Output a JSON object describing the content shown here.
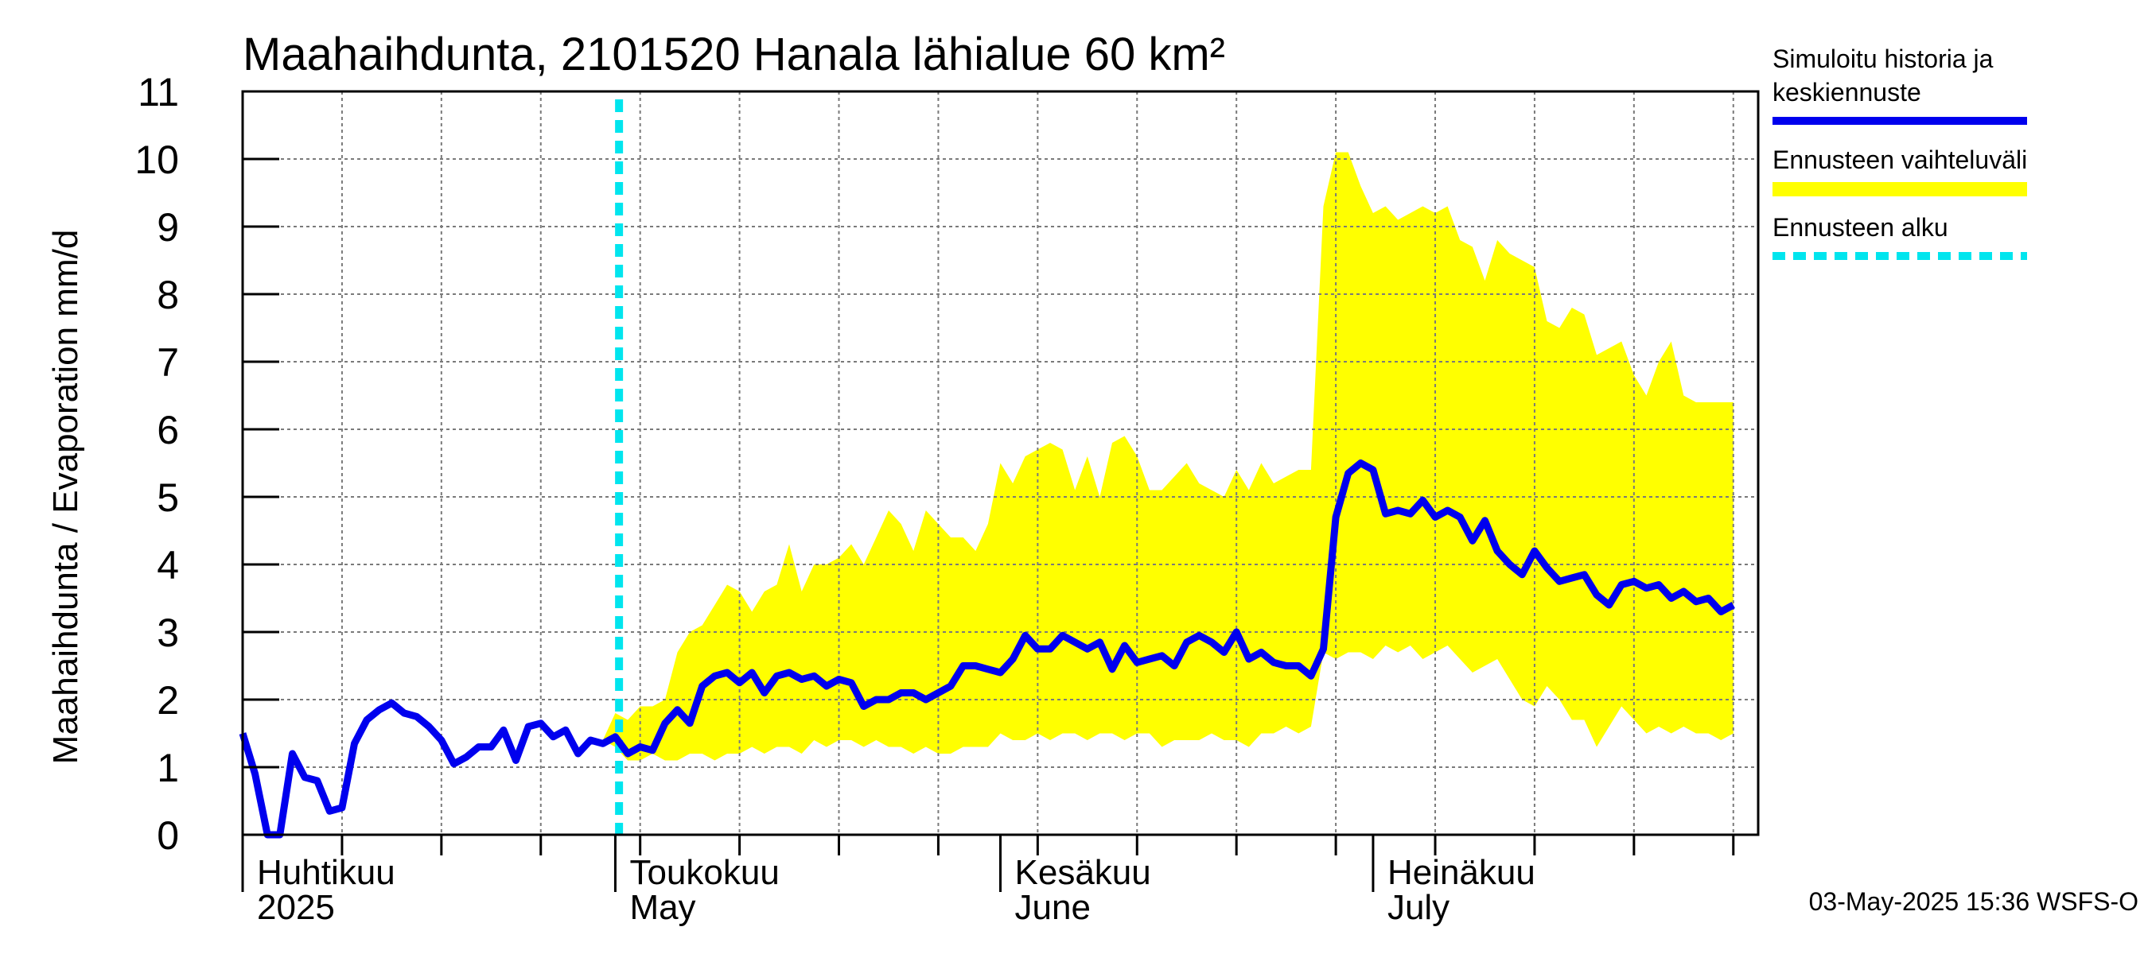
{
  "chart_data": {
    "type": "line",
    "title": "Maahaihdunta, 2101520 Hanala lähialue 60 km²",
    "ylabel": "Maahaihdunta / Evaporation   mm/d",
    "ylim": [
      0,
      11
    ],
    "yticks": [
      0,
      1,
      2,
      3,
      4,
      5,
      6,
      7,
      8,
      9,
      10,
      11
    ],
    "x_range": [
      "2025-04-01",
      "2025-07-31"
    ],
    "month_labels": [
      {
        "fi": "Huhtikuu",
        "en": "2025",
        "day": 0
      },
      {
        "fi": "Toukokuu",
        "en": "May",
        "day": 30
      },
      {
        "fi": "Kesäkuu",
        "en": "June",
        "day": 61
      },
      {
        "fi": "Heinäkuu",
        "en": "July",
        "day": 91
      }
    ],
    "forecast_start_day": 30.3,
    "legend": [
      {
        "label": "Simuloitu historia ja keskiennuste",
        "color": "#0000ee",
        "style": "solid"
      },
      {
        "label": "Ennusteen vaihteluväli",
        "color": "#ffff00",
        "style": "band"
      },
      {
        "label": "Ennusteen alku",
        "color": "#00e5ee",
        "style": "dashed"
      }
    ],
    "series": [
      {
        "name": "Simuloitu historia ja keskiennuste",
        "x": [
          0,
          1,
          2,
          3,
          4,
          5,
          6,
          7,
          8,
          9,
          10,
          11,
          12,
          13,
          14,
          15,
          16,
          17,
          18,
          19,
          20,
          21,
          22,
          23,
          24,
          25,
          26,
          27,
          28,
          29,
          30,
          31,
          32,
          33,
          34,
          35,
          36,
          37,
          38,
          39,
          40,
          41,
          42,
          43,
          44,
          45,
          46,
          47,
          48,
          49,
          50,
          51,
          52,
          53,
          54,
          55,
          56,
          57,
          58,
          59,
          60,
          61,
          62,
          63,
          64,
          65,
          66,
          67,
          68,
          69,
          70,
          71,
          72,
          73,
          74,
          75,
          76,
          77,
          78,
          79,
          80,
          81,
          82,
          83,
          84,
          85,
          86,
          87,
          88,
          89,
          90,
          91,
          92,
          93,
          94,
          95,
          96,
          97,
          98,
          99,
          100,
          101,
          102,
          103,
          104,
          105,
          106,
          107,
          108,
          109,
          110,
          111,
          112,
          113,
          114,
          115,
          116,
          117,
          118,
          119,
          120
        ],
        "values": [
          1.5,
          0.9,
          0.0,
          0.0,
          1.2,
          0.85,
          0.8,
          0.35,
          0.4,
          1.35,
          1.7,
          1.85,
          1.95,
          1.8,
          1.75,
          1.6,
          1.4,
          1.05,
          1.15,
          1.3,
          1.3,
          1.55,
          1.1,
          1.6,
          1.65,
          1.45,
          1.55,
          1.2,
          1.4,
          1.35,
          1.45,
          1.2,
          1.3,
          1.25,
          1.65,
          1.85,
          1.65,
          2.2,
          2.35,
          2.4,
          2.25,
          2.4,
          2.1,
          2.35,
          2.4,
          2.3,
          2.35,
          2.2,
          2.3,
          2.25,
          1.9,
          2.0,
          2.0,
          2.1,
          2.1,
          2.0,
          2.1,
          2.2,
          2.5,
          2.5,
          2.45,
          2.4,
          2.6,
          2.95,
          2.75,
          2.75,
          2.95,
          2.85,
          2.75,
          2.85,
          2.45,
          2.8,
          2.55,
          2.6,
          2.65,
          2.5,
          2.85,
          2.95,
          2.85,
          2.7,
          3.0,
          2.6,
          2.7,
          2.55,
          2.5,
          2.5,
          2.35,
          2.75,
          4.7,
          5.35,
          5.5,
          5.4,
          4.75,
          4.8,
          4.75,
          4.95,
          4.7,
          4.8,
          4.7,
          4.35,
          4.65,
          4.2,
          4.0,
          3.85,
          4.2,
          3.95,
          3.75,
          3.8,
          3.85,
          3.55,
          3.4,
          3.7,
          3.75,
          3.65,
          3.7,
          3.5,
          3.6,
          3.45,
          3.5,
          3.3,
          3.4
        ]
      },
      {
        "name": "Ennusteen vaihteluväli",
        "x": [
          29,
          30,
          31,
          32,
          33,
          34,
          35,
          36,
          37,
          38,
          39,
          40,
          41,
          42,
          43,
          44,
          45,
          46,
          47,
          48,
          49,
          50,
          51,
          52,
          53,
          54,
          55,
          56,
          57,
          58,
          59,
          60,
          61,
          62,
          63,
          64,
          65,
          66,
          67,
          68,
          69,
          70,
          71,
          72,
          73,
          74,
          75,
          76,
          77,
          78,
          79,
          80,
          81,
          82,
          83,
          84,
          85,
          86,
          87,
          88,
          89,
          90,
          91,
          92,
          93,
          94,
          95,
          96,
          97,
          98,
          99,
          100,
          101,
          102,
          103,
          104,
          105,
          106,
          107,
          108,
          109,
          110,
          111,
          112,
          113,
          114,
          115,
          116,
          117,
          118,
          119,
          120
        ],
        "upper": [
          1.4,
          1.8,
          1.7,
          1.9,
          1.9,
          2.0,
          2.7,
          3.0,
          3.1,
          3.4,
          3.7,
          3.6,
          3.3,
          3.6,
          3.7,
          4.3,
          3.6,
          4.0,
          4.0,
          4.1,
          4.3,
          4.0,
          4.4,
          4.8,
          4.6,
          4.2,
          4.8,
          4.6,
          4.4,
          4.4,
          4.2,
          4.6,
          5.5,
          5.2,
          5.6,
          5.7,
          5.8,
          5.7,
          5.1,
          5.6,
          5.0,
          5.8,
          5.9,
          5.6,
          5.1,
          5.1,
          5.3,
          5.5,
          5.2,
          5.1,
          5.0,
          5.4,
          5.1,
          5.5,
          5.2,
          5.3,
          5.4,
          5.4,
          9.3,
          10.1,
          10.1,
          9.6,
          9.2,
          9.3,
          9.1,
          9.2,
          9.3,
          9.2,
          9.3,
          8.8,
          8.7,
          8.2,
          8.8,
          8.6,
          8.5,
          8.4,
          7.6,
          7.5,
          7.8,
          7.7,
          7.1,
          7.2,
          7.3,
          6.8,
          6.5,
          7.0,
          7.3,
          6.5,
          6.4,
          6.4,
          6.4,
          6.4
        ],
        "lower": [
          1.4,
          1.3,
          1.1,
          1.1,
          1.2,
          1.1,
          1.1,
          1.2,
          1.2,
          1.1,
          1.2,
          1.2,
          1.3,
          1.2,
          1.3,
          1.3,
          1.2,
          1.4,
          1.3,
          1.4,
          1.4,
          1.3,
          1.4,
          1.3,
          1.3,
          1.2,
          1.3,
          1.2,
          1.2,
          1.3,
          1.3,
          1.3,
          1.5,
          1.4,
          1.4,
          1.5,
          1.4,
          1.5,
          1.5,
          1.4,
          1.5,
          1.5,
          1.4,
          1.5,
          1.5,
          1.3,
          1.4,
          1.4,
          1.4,
          1.5,
          1.4,
          1.4,
          1.3,
          1.5,
          1.5,
          1.6,
          1.5,
          1.6,
          2.7,
          2.6,
          2.7,
          2.7,
          2.6,
          2.8,
          2.7,
          2.8,
          2.6,
          2.7,
          2.8,
          2.6,
          2.4,
          2.5,
          2.6,
          2.3,
          2.0,
          1.9,
          2.2,
          2.0,
          1.7,
          1.7,
          1.3,
          1.6,
          1.9,
          1.7,
          1.5,
          1.6,
          1.5,
          1.6,
          1.5,
          1.5,
          1.4,
          1.5
        ]
      }
    ]
  },
  "footer": {
    "timestamp": "03-May-2025 15:36 WSFS-O"
  }
}
